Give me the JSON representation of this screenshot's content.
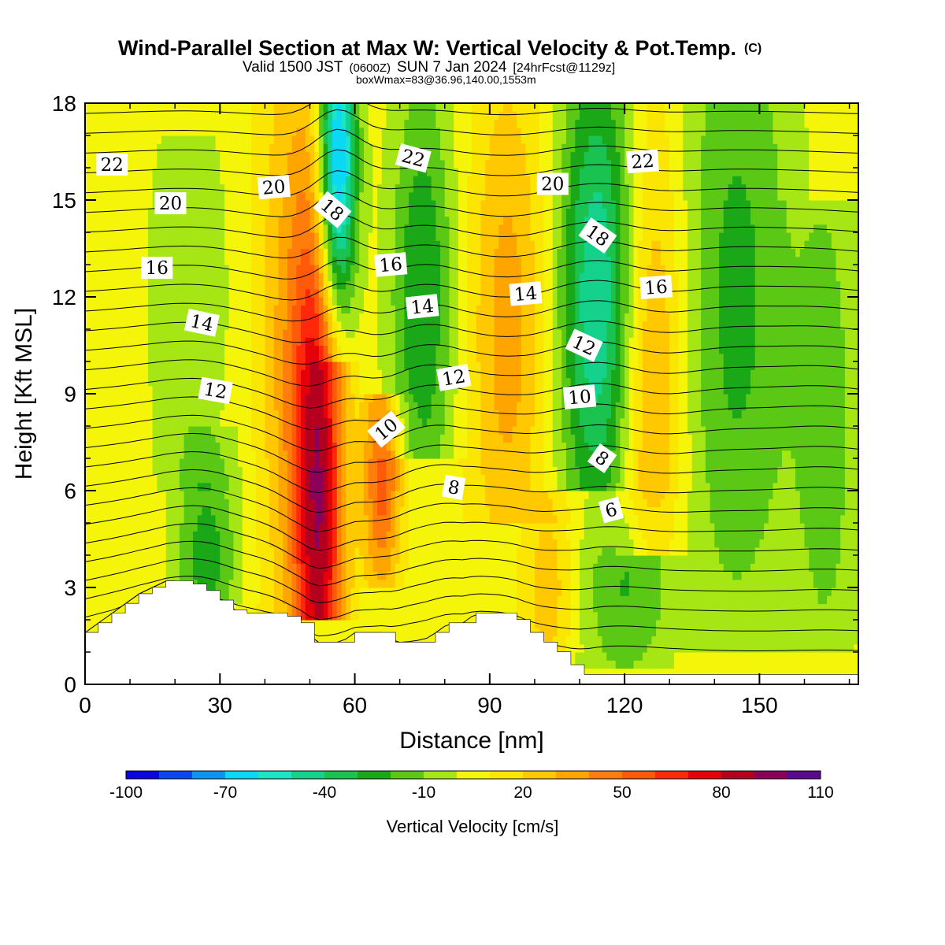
{
  "chart_data": {
    "type": "heatmap",
    "title": "Wind-Parallel Section at Max W: Vertical Velocity & Pot.Temp.",
    "title_mark": "(C)",
    "subtitle_parts": [
      "Valid 1500 JST",
      "(0600Z)",
      "SUN 7 Jan 2024",
      "[24hrFcst@1129z]"
    ],
    "subtitle2": "boxWmax=83@36.96,140.00,1553m",
    "xlabel": "Distance [nm]",
    "ylabel": "Height [Kft MSL]",
    "xlim": [
      0,
      172
    ],
    "ylim": [
      0,
      18
    ],
    "xticks": [
      0,
      30,
      60,
      90,
      120,
      150
    ],
    "yticks": [
      0,
      3,
      6,
      9,
      12,
      15,
      18
    ],
    "colorbar": {
      "label": "Vertical Velocity [cm/s]",
      "tick_labels": [
        "-100",
        "-70",
        "-40",
        "-10",
        "20",
        "50",
        "80",
        "110"
      ],
      "levels": [
        -100,
        -90,
        -80,
        -70,
        -60,
        -50,
        -40,
        -30,
        -20,
        -10,
        0,
        10,
        20,
        30,
        40,
        50,
        60,
        70,
        80,
        90,
        100,
        110
      ],
      "colors": [
        "#0a05e0",
        "#0a46f2",
        "#0a96ef",
        "#0ad8f5",
        "#1ae6c6",
        "#14d28c",
        "#1ac350",
        "#1aa818",
        "#5ac814",
        "#a6e614",
        "#f5f50a",
        "#fae600",
        "#ffc800",
        "#ffa500",
        "#ff7d0a",
        "#ff5a0a",
        "#ff280a",
        "#e6000a",
        "#b4001e",
        "#8c005a",
        "#5a0a8c"
      ]
    },
    "vertical_velocity_cm_s": {
      "background": 5,
      "features": [
        {
          "name": "updraft",
          "x": 52,
          "z": 5.5,
          "peak": 80,
          "width_nm": 4,
          "z_from": 2,
          "z_to": 18
        },
        {
          "name": "updraft",
          "x": 66,
          "z": 6.5,
          "peak": 50,
          "width_nm": 3,
          "z_from": 3,
          "z_to": 9
        },
        {
          "name": "downdraft",
          "x": 56,
          "z": 16,
          "peak": -90,
          "width_nm": 3,
          "z_from": 10,
          "z_to": 18
        },
        {
          "name": "downdraft",
          "x": 75,
          "z": 12,
          "peak": -35,
          "width_nm": 5,
          "z_from": 7,
          "z_to": 18
        },
        {
          "name": "downdraft",
          "x": 114,
          "z": 12,
          "peak": -55,
          "width_nm": 6,
          "z_from": 6,
          "z_to": 18
        },
        {
          "name": "downdraft",
          "x": 27,
          "z": 4,
          "peak": -30,
          "width_nm": 5,
          "z_from": 2.5,
          "z_to": 8
        },
        {
          "name": "downdraft",
          "x": 23,
          "z": 12,
          "peak": -12,
          "width_nm": 7,
          "z_from": 6,
          "z_to": 17
        },
        {
          "name": "downdraft",
          "x": 145,
          "z": 12,
          "peak": -28,
          "width_nm": 9,
          "z_from": 1,
          "z_to": 18
        },
        {
          "name": "downdraft",
          "x": 165,
          "z": 8,
          "peak": -20,
          "width_nm": 5,
          "z_from": 1,
          "z_to": 15
        },
        {
          "name": "downdraft",
          "x": 120,
          "z": 3,
          "peak": -25,
          "width_nm": 7,
          "z_from": 0.5,
          "z_to": 6
        },
        {
          "name": "updraft",
          "x": 94,
          "z": 11,
          "peak": 30,
          "width_nm": 6,
          "z_from": 5,
          "z_to": 18
        },
        {
          "name": "updraft",
          "x": 126,
          "z": 9,
          "peak": 32,
          "width_nm": 5,
          "z_from": 4,
          "z_to": 18
        },
        {
          "name": "updraft",
          "x": 103,
          "z": 3,
          "peak": 22,
          "width_nm": 4,
          "z_from": 1,
          "z_to": 6
        },
        {
          "name": "updraft",
          "x": 45,
          "z": 11,
          "peak": 25,
          "width_nm": 5,
          "z_from": 2,
          "z_to": 18
        }
      ]
    },
    "terrain_kft": {
      "x": [
        0,
        3,
        6,
        9,
        12,
        15,
        18,
        21,
        24,
        27,
        30,
        33,
        36,
        39,
        42,
        45,
        48,
        51,
        54,
        57,
        60,
        63,
        66,
        69,
        72,
        75,
        78,
        81,
        84,
        87,
        90,
        93,
        96,
        99,
        102,
        105,
        108,
        111,
        114,
        117,
        120,
        123,
        126,
        129,
        132,
        135,
        138,
        141,
        144,
        147,
        150,
        153,
        156,
        159,
        162,
        165,
        168,
        172
      ],
      "z": [
        1.6,
        1.9,
        2.2,
        2.5,
        2.8,
        3.0,
        3.2,
        3.2,
        3.1,
        2.9,
        2.6,
        2.3,
        2.2,
        2.2,
        2.2,
        2.1,
        1.9,
        1.3,
        1.3,
        1.3,
        1.6,
        1.6,
        1.6,
        1.3,
        1.3,
        1.3,
        1.6,
        1.9,
        1.9,
        2.2,
        2.2,
        2.2,
        2.0,
        1.6,
        1.3,
        1.0,
        0.6,
        0.3,
        0.3,
        0.3,
        0.3,
        0.3,
        0.3,
        0.3,
        0.3,
        0.3,
        0.3,
        0.3,
        0.3,
        0.3,
        0.3,
        0.3,
        0.3,
        0.3,
        0.3,
        0.3,
        0.3,
        0.3
      ]
    },
    "potential_temperature_contours": {
      "labels": [
        {
          "text": "22",
          "x": 6,
          "z": 16.1,
          "angle": 0
        },
        {
          "text": "20",
          "x": 19,
          "z": 14.9,
          "angle": 0
        },
        {
          "text": "20",
          "x": 42,
          "z": 15.4,
          "angle": -5
        },
        {
          "text": "18",
          "x": 55,
          "z": 14.7,
          "angle": 40
        },
        {
          "text": "22",
          "x": 73,
          "z": 16.3,
          "angle": 15
        },
        {
          "text": "20",
          "x": 104,
          "z": 15.5,
          "angle": 0
        },
        {
          "text": "22",
          "x": 124,
          "z": 16.2,
          "angle": -4
        },
        {
          "text": "18",
          "x": 114,
          "z": 13.9,
          "angle": 35
        },
        {
          "text": "16",
          "x": 16,
          "z": 12.9,
          "angle": 0
        },
        {
          "text": "16",
          "x": 68,
          "z": 13.0,
          "angle": -5
        },
        {
          "text": "16",
          "x": 127,
          "z": 12.3,
          "angle": -4
        },
        {
          "text": "14",
          "x": 26,
          "z": 11.2,
          "angle": 12
        },
        {
          "text": "14",
          "x": 75,
          "z": 11.7,
          "angle": -6
        },
        {
          "text": "14",
          "x": 98,
          "z": 12.1,
          "angle": -5
        },
        {
          "text": "12",
          "x": 29,
          "z": 9.1,
          "angle": 10
        },
        {
          "text": "12",
          "x": 82,
          "z": 9.5,
          "angle": -10
        },
        {
          "text": "12",
          "x": 111,
          "z": 10.5,
          "angle": 25
        },
        {
          "text": "10",
          "x": 67,
          "z": 7.9,
          "angle": -40
        },
        {
          "text": "10",
          "x": 110,
          "z": 8.9,
          "angle": -5
        },
        {
          "text": "8",
          "x": 82,
          "z": 6.1,
          "angle": 10
        },
        {
          "text": "8",
          "x": 115,
          "z": 7.0,
          "angle": 35
        },
        {
          "text": "6",
          "x": 117,
          "z": 5.4,
          "angle": -15
        }
      ]
    }
  }
}
